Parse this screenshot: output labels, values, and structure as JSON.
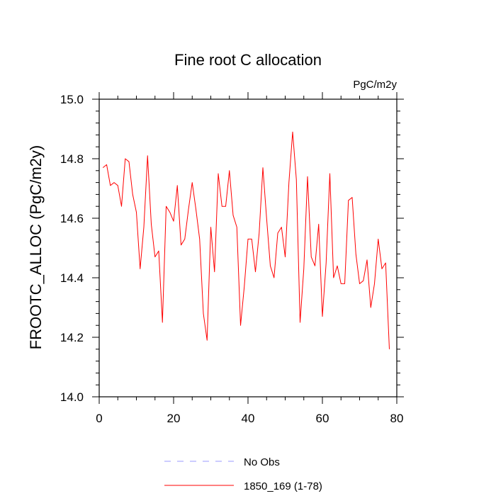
{
  "chart_data": {
    "type": "line",
    "title": "Fine root C allocation",
    "units": "PgC/m2y",
    "xlabel": "",
    "ylabel": "FROOTC_ALLOC  (PgC/m2y)",
    "xlim": [
      0,
      80
    ],
    "ylim": [
      14.0,
      15.0
    ],
    "x_ticks": [
      0,
      20,
      40,
      60,
      80
    ],
    "y_ticks": [
      14.0,
      14.2,
      14.4,
      14.6,
      14.8,
      15.0
    ],
    "x_tick_labels": [
      "0",
      "20",
      "40",
      "60",
      "80"
    ],
    "y_tick_labels": [
      "14.0",
      "14.2",
      "14.4",
      "14.6",
      "14.8",
      "15.0"
    ],
    "grid": false,
    "legend_position": "bottom",
    "legend": [
      {
        "label": "No Obs",
        "color": "#9999ff",
        "style": "dashed"
      },
      {
        "label": "1850_169 (1-78)",
        "color": "#ff0000",
        "style": "solid"
      }
    ],
    "series": [
      {
        "name": "1850_169 (1-78)",
        "color": "#ff0000",
        "x": [
          1,
          2,
          3,
          4,
          5,
          6,
          7,
          8,
          9,
          10,
          11,
          12,
          13,
          14,
          15,
          16,
          17,
          18,
          19,
          20,
          21,
          22,
          23,
          24,
          25,
          26,
          27,
          28,
          29,
          30,
          31,
          32,
          33,
          34,
          35,
          36,
          37,
          38,
          39,
          40,
          41,
          42,
          43,
          44,
          45,
          46,
          47,
          48,
          49,
          50,
          51,
          52,
          53,
          54,
          55,
          56,
          57,
          58,
          59,
          60,
          61,
          62,
          63,
          64,
          65,
          66,
          67,
          68,
          69,
          70,
          71,
          72,
          73,
          74,
          75,
          76,
          77,
          78
        ],
        "values": [
          14.77,
          14.78,
          14.71,
          14.72,
          14.71,
          14.64,
          14.8,
          14.79,
          14.68,
          14.62,
          14.43,
          14.57,
          14.81,
          14.58,
          14.47,
          14.49,
          14.25,
          14.64,
          14.62,
          14.59,
          14.71,
          14.51,
          14.53,
          14.63,
          14.72,
          14.63,
          14.53,
          14.28,
          14.19,
          14.57,
          14.42,
          14.75,
          14.64,
          14.64,
          14.76,
          14.61,
          14.57,
          14.24,
          14.37,
          14.53,
          14.53,
          14.42,
          14.55,
          14.77,
          14.6,
          14.44,
          14.4,
          14.55,
          14.57,
          14.47,
          14.72,
          14.89,
          14.73,
          14.25,
          14.43,
          14.74,
          14.47,
          14.44,
          14.58,
          14.27,
          14.45,
          14.75,
          14.4,
          14.44,
          14.38,
          14.38,
          14.66,
          14.67,
          14.48,
          14.38,
          14.39,
          14.46,
          14.3,
          14.38,
          14.53,
          14.43,
          14.45,
          14.16
        ]
      }
    ]
  }
}
